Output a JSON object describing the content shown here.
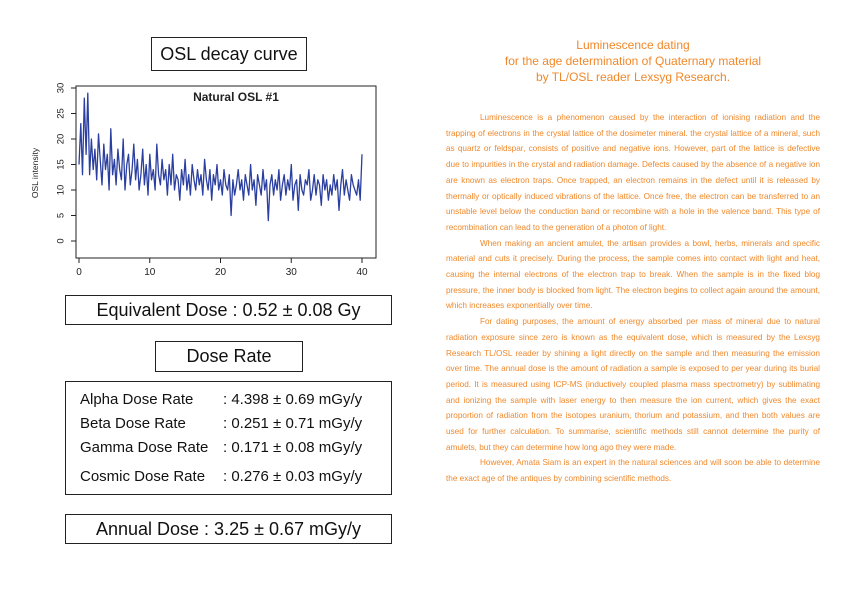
{
  "osl_box": {
    "title": "OSL decay curve"
  },
  "chart_data": {
    "type": "line",
    "title": "Natural OSL #1",
    "xlabel": "",
    "ylabel": "OSL intensity",
    "xlim": [
      0,
      40
    ],
    "ylim": [
      0,
      30
    ],
    "xticks": [
      "0",
      "10",
      "20",
      "30",
      "40"
    ],
    "yticks": [
      "0",
      "5",
      "10",
      "15",
      "20",
      "25",
      "30"
    ],
    "grid": false,
    "series": [
      {
        "color": "#2b3fa0",
        "x": [
          0,
          0.25,
          0.5,
          0.75,
          1,
          1.25,
          1.5,
          1.75,
          2,
          2.25,
          2.5,
          2.75,
          3,
          3.25,
          3.5,
          3.75,
          4,
          4.25,
          4.5,
          4.75,
          5,
          5.25,
          5.5,
          5.75,
          6,
          6.25,
          6.5,
          6.75,
          7,
          7.25,
          7.5,
          7.75,
          8,
          8.25,
          8.5,
          8.75,
          9,
          9.25,
          9.5,
          9.75,
          10,
          10.25,
          10.5,
          10.75,
          11,
          11.25,
          11.5,
          11.75,
          12,
          12.25,
          12.5,
          12.75,
          13,
          13.25,
          13.5,
          13.75,
          14,
          14.25,
          14.5,
          14.75,
          15,
          15.25,
          15.5,
          15.75,
          16,
          16.25,
          16.5,
          16.75,
          17,
          17.25,
          17.5,
          17.75,
          18,
          18.25,
          18.5,
          18.75,
          19,
          19.25,
          19.5,
          19.75,
          20,
          20.25,
          20.5,
          20.75,
          21,
          21.25,
          21.5,
          21.75,
          22,
          22.25,
          22.5,
          22.75,
          23,
          23.25,
          23.5,
          23.75,
          24,
          24.25,
          24.5,
          24.75,
          25,
          25.25,
          25.5,
          25.75,
          26,
          26.25,
          26.5,
          26.75,
          27,
          27.25,
          27.5,
          27.75,
          28,
          28.25,
          28.5,
          28.75,
          29,
          29.25,
          29.5,
          29.75,
          30,
          30.25,
          30.5,
          30.75,
          31,
          31.25,
          31.5,
          31.75,
          32,
          32.25,
          32.5,
          32.75,
          33,
          33.25,
          33.5,
          33.75,
          34,
          34.25,
          34.5,
          34.75,
          35,
          35.25,
          35.5,
          35.75,
          36,
          36.25,
          36.5,
          36.75,
          37,
          37.25,
          37.5,
          37.75,
          38,
          38.25,
          38.5,
          38.75,
          39,
          39.25,
          39.5,
          39.75,
          40
        ],
        "y": [
          15,
          23,
          13,
          28,
          17,
          29,
          13,
          20,
          14,
          18,
          12,
          21,
          16,
          11,
          19,
          14,
          17,
          10,
          22,
          13,
          16,
          11,
          18,
          14,
          12,
          20,
          10,
          15,
          17,
          11,
          14,
          19,
          12,
          16,
          10,
          13,
          18,
          11,
          15,
          9,
          17,
          12,
          14,
          10,
          19,
          13,
          11,
          16,
          12,
          14,
          9,
          15,
          11,
          17,
          10,
          13,
          12,
          8,
          14,
          11,
          16,
          10,
          13,
          9,
          15,
          12,
          10,
          14,
          11,
          13,
          9,
          16,
          12,
          10,
          14,
          8,
          13,
          11,
          15,
          10,
          12,
          9,
          14,
          11,
          10,
          13,
          5,
          12,
          9,
          11,
          14,
          10,
          12,
          8,
          13,
          11,
          9,
          15,
          10,
          12,
          7,
          13,
          11,
          9,
          14,
          10,
          12,
          4,
          11,
          13,
          9,
          12,
          10,
          14,
          8,
          11,
          13,
          9,
          12,
          10,
          15,
          8,
          11,
          12,
          6,
          13,
          10,
          9,
          12,
          11,
          14,
          8,
          10,
          13,
          9,
          12,
          11,
          7,
          13,
          10,
          12,
          8,
          11,
          9,
          13,
          10,
          12,
          6,
          11,
          14,
          9,
          12,
          10,
          8,
          13,
          11,
          10,
          9,
          12,
          8,
          17
        ]
      }
    ]
  },
  "equivalent_dose": {
    "text": "Equivalent Dose : 0.52 ± 0.08 Gy"
  },
  "dose_rate_box": {
    "title": "Dose Rate"
  },
  "dose_rates": [
    {
      "label": "Alpha Dose Rate",
      "value": ": 4.398 ± 0.69  mGy/y"
    },
    {
      "label": "Beta Dose Rate",
      "value": ": 0.251 ± 0.71  mGy/y"
    },
    {
      "label": "Gamma Dose Rate",
      "value": ": 0.171 ± 0.08  mGy/y"
    },
    {
      "label": "Cosmic Dose Rate",
      "value": ": 0.276  ±  0.03  mGy/y"
    }
  ],
  "annual_dose": {
    "text": "Annual Dose : 3.25 ± 0.67 mGy/y"
  },
  "article": {
    "title_lines": [
      "Luminescence dating",
      "for the age determination of Quaternary material",
      "by TL/OSL reader Lexsyg Research."
    ],
    "paragraphs": [
      "Luminescence is a phenomenon caused by the interaction of ionising radiation and the trapping of electrons in the crystal lattice of the dosimeter mineral. the crystal lattice of a mineral, such as quartz or feldspar, consists of positive and negative ions. However, part of the lattice is defective due to impurities in the crystal and radiation damage. Defects caused by the absence of a negative ion are known as electron traps. Once trapped, an electron remains in the defect until it is released by thermally or optically induced vibrations of the lattice. Once free, the electron can be transferred to an unstable level below the conduction band or recombine with a hole in the valence band. This type of recombination can lead to the generation of a photon of light.",
      "When making an ancient amulet, the artisan provides a bowl, herbs, minerals and specific material and cuts it precisely. During the process, the sample comes into contact with light and heat, causing the internal electrons of the electron trap to break. When the sample is in the fixed blog pressure, the inner body is blocked from light. The electron begins to collect again around the amount, which increases exponentially over time.",
      "For dating purposes, the amount of energy absorbed per mass of mineral due to natural radiation exposure since zero is known as the equivalent dose, which is measured by the Lexsyg Research TL/OSL reader by shining a light directly on the sample and then measuring the emission over time. The annual dose is the amount of radiation a sample is exposed to per year during its burial period. It is measured using ICP-MS (inductively coupled plasma mass spectrometry) by sublimating and ionizing the sample with laser energy to then measure the ion current, which gives the exact proportion of radiation from the isotopes uranium, thorium and potassium, and then both values are used for further calculation. To summarise, scientific methods still cannot determine the purity of amulets, but they can determine how long ago they were made.",
      "However, Amata Siam is an expert in the natural sciences and will soon be able to determine the exact age of the antiques by combining scientific methods."
    ]
  }
}
